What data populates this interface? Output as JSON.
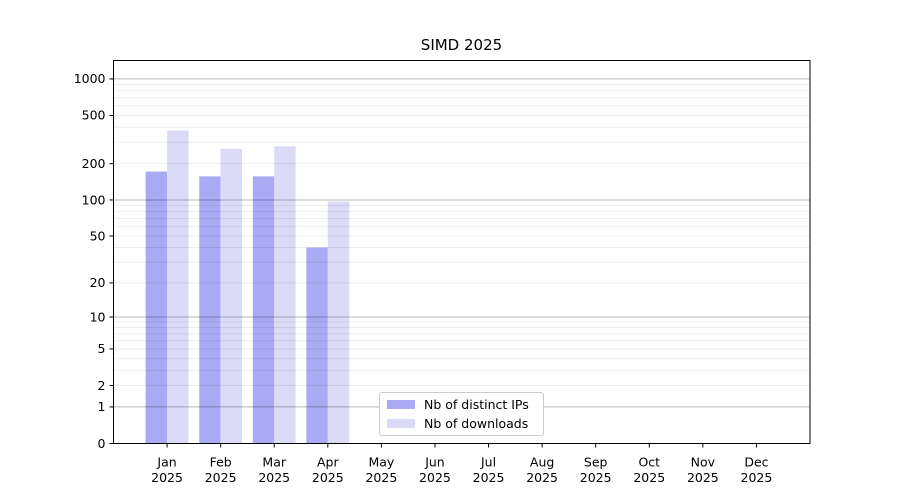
{
  "chart_data": {
    "type": "bar",
    "title": "SIMD 2025",
    "categories": [
      "Jan",
      "Feb",
      "Mar",
      "Apr",
      "May",
      "Jun",
      "Jul",
      "Aug",
      "Sep",
      "Oct",
      "Nov",
      "Dec"
    ],
    "x_tick_second_line": "2025",
    "series": [
      {
        "name": "Nb of distinct IPs",
        "key": "distinct_ips",
        "values": [
          172,
          157,
          157,
          40,
          0,
          0,
          0,
          0,
          0,
          0,
          0,
          0
        ]
      },
      {
        "name": "Nb of downloads",
        "key": "downloads",
        "values": [
          375,
          265,
          278,
          97,
          0,
          0,
          0,
          0,
          0,
          0,
          0,
          0
        ]
      }
    ],
    "bar_colors": {
      "distinct_ips": "#a9a9f4",
      "downloads": "#dbdbf7"
    },
    "y_ticks": [
      0,
      1,
      2,
      5,
      10,
      20,
      50,
      100,
      200,
      500,
      1000
    ],
    "major_gridline_values": [
      1,
      10,
      100,
      1000
    ],
    "scale": "log1p",
    "ylim": [
      0,
      1418
    ],
    "xlabel": "",
    "ylabel": "",
    "grid": "horizontal-on, major darker, log minors faint, drawn over bars",
    "legend_position": "inside lower-center-left",
    "colors": {
      "grid_major": "#b8b8b8",
      "grid_minor": "#ececec",
      "spine": "#000000",
      "text": "#000000",
      "background": "#ffffff",
      "legend_border": "#cccccc"
    }
  }
}
